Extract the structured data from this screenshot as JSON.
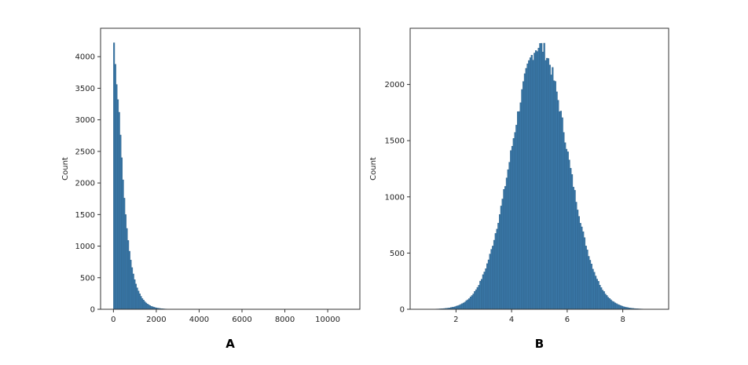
{
  "colors": {
    "bar_fill": "#3a78a8",
    "bar_edge": "#2c5f87",
    "axes": "#333333"
  },
  "chart_data": [
    {
      "type": "histogram",
      "panel_label": "A",
      "ylabel": "Count",
      "xlabel": "",
      "xticks": [
        "0",
        "2000",
        "4000",
        "6000",
        "8000",
        "10000"
      ],
      "yticks": [
        "0",
        "500",
        "1000",
        "1500",
        "2000",
        "2500",
        "3000",
        "3500",
        "4000"
      ],
      "xlim": [
        -600,
        11500
      ],
      "ylim": [
        0,
        4450
      ],
      "bin_width": 60,
      "bin_start": 0,
      "counts": [
        4220,
        3880,
        3560,
        3320,
        3120,
        2760,
        2400,
        2050,
        1760,
        1500,
        1280,
        1090,
        920,
        780,
        660,
        560,
        470,
        400,
        340,
        290,
        245,
        205,
        170,
        145,
        120,
        100,
        84,
        70,
        58,
        48,
        40,
        33,
        27,
        22,
        18,
        15,
        12,
        10,
        8,
        6,
        5,
        4,
        3,
        3,
        2,
        2,
        1,
        1,
        1,
        1
      ]
    },
    {
      "type": "histogram",
      "panel_label": "B",
      "ylabel": "Count",
      "xlabel": "",
      "xticks": [
        "2",
        "4",
        "6",
        "8"
      ],
      "yticks": [
        "0",
        "500",
        "1000",
        "1500",
        "2000"
      ],
      "xlim": [
        0.35,
        9.65
      ],
      "ylim": [
        0,
        2500
      ],
      "distribution": {
        "kind": "normal",
        "mean": 5.0,
        "sd": 1.0,
        "peak_count": 2340
      },
      "bins": {
        "start": 0.7,
        "end": 9.3,
        "width": 0.05
      }
    }
  ]
}
